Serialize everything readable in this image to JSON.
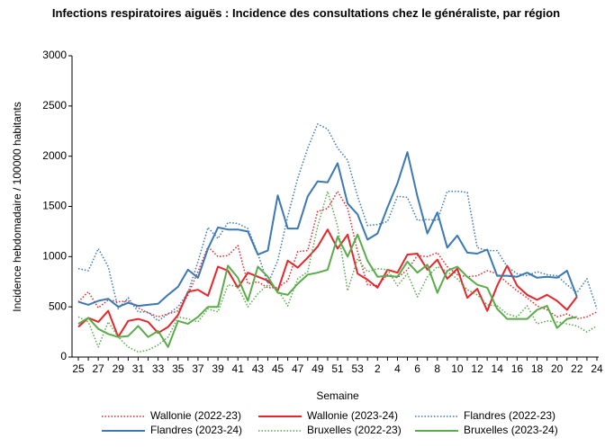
{
  "chart_data": {
    "type": "line",
    "title": "Infections respiratoires aiguës : Incidence des consultations chez le généraliste, par région",
    "x_label": "Semaine",
    "y_label": "Incidence hebdomadaire / 100000 habitants",
    "categories": [
      "25",
      null,
      "27",
      null,
      "29",
      null,
      "31",
      null,
      "33",
      null,
      "35",
      null,
      "37",
      null,
      "39",
      null,
      "41",
      null,
      "43",
      null,
      "45",
      null,
      "47",
      null,
      "49",
      null,
      "51",
      null,
      "53",
      null,
      "2",
      null,
      "4",
      null,
      "6",
      null,
      "8",
      null,
      "10",
      null,
      "12",
      null,
      "14",
      null,
      "16",
      null,
      "18",
      null,
      "20",
      null,
      "22",
      null,
      "24"
    ],
    "ylim": [
      0,
      3000
    ],
    "yticks": [
      0,
      500,
      1000,
      1500,
      2000,
      2500,
      3000
    ],
    "series": [
      {
        "name": "Wallonie (2022-23)",
        "color": "#e8262a",
        "style": "dotted",
        "values": [
          550,
          650,
          490,
          570,
          550,
          560,
          490,
          440,
          400,
          430,
          460,
          620,
          850,
          1100,
          1000,
          1010,
          1110,
          730,
          750,
          690,
          690,
          760,
          1050,
          1060,
          1450,
          1480,
          1650,
          1480,
          1050,
          720,
          710,
          820,
          790,
          870,
          1010,
          1000,
          1040,
          900,
          820,
          800,
          810,
          860,
          830,
          740,
          660,
          590,
          510,
          470,
          400,
          430,
          380,
          400,
          450
        ]
      },
      {
        "name": "Wallonie (2023-24)",
        "color": "#e8262a",
        "style": "solid",
        "values": [
          300,
          390,
          350,
          460,
          200,
          360,
          380,
          350,
          240,
          300,
          420,
          650,
          670,
          610,
          900,
          860,
          690,
          840,
          800,
          760,
          660,
          960,
          890,
          990,
          1100,
          1270,
          1080,
          1220,
          830,
          770,
          690,
          870,
          840,
          1020,
          1030,
          870,
          970,
          780,
          880,
          590,
          680,
          460,
          710,
          910,
          710,
          620,
          570,
          620,
          560,
          470,
          600,
          null,
          null
        ]
      },
      {
        "name": "Flandres (2022-23)",
        "color": "#3c78b4",
        "style": "dotted",
        "values": [
          880,
          860,
          1080,
          900,
          480,
          590,
          450,
          450,
          360,
          430,
          500,
          640,
          950,
          1290,
          1180,
          1340,
          1330,
          1280,
          1030,
          730,
          960,
          1400,
          1780,
          2080,
          2320,
          2270,
          2080,
          1960,
          1600,
          1310,
          1320,
          1350,
          1600,
          1590,
          1360,
          1370,
          1360,
          1650,
          1650,
          1640,
          1090,
          1060,
          1060,
          900,
          830,
          810,
          850,
          820,
          810,
          720,
          640,
          780,
          480
        ]
      },
      {
        "name": "Flandres (2023-24)",
        "color": "#3c78b4",
        "style": "solid",
        "values": [
          550,
          520,
          560,
          580,
          500,
          540,
          510,
          520,
          530,
          620,
          700,
          870,
          790,
          1080,
          1290,
          1270,
          1270,
          1250,
          1020,
          1060,
          1610,
          1280,
          1280,
          1600,
          1750,
          1740,
          1930,
          1530,
          1420,
          1170,
          1230,
          1490,
          1730,
          2040,
          1600,
          1230,
          1440,
          1090,
          1210,
          1040,
          1030,
          1070,
          810,
          810,
          800,
          840,
          790,
          800,
          790,
          860,
          600,
          null,
          null
        ]
      },
      {
        "name": "Bruxelles (2022-23)",
        "color": "#5aab4a",
        "style": "dotted",
        "values": [
          400,
          350,
          100,
          350,
          200,
          100,
          50,
          70,
          120,
          200,
          400,
          380,
          350,
          480,
          450,
          720,
          700,
          500,
          630,
          720,
          670,
          510,
          780,
          850,
          1300,
          1650,
          1300,
          660,
          980,
          850,
          880,
          870,
          710,
          830,
          600,
          800,
          900,
          850,
          780,
          670,
          620,
          520,
          510,
          430,
          400,
          510,
          330,
          360,
          350,
          330,
          310,
          250,
          310
        ]
      },
      {
        "name": "Bruxelles (2023-24)",
        "color": "#5aab4a",
        "style": "solid",
        "values": [
          330,
          390,
          280,
          230,
          200,
          210,
          310,
          200,
          260,
          100,
          360,
          330,
          400,
          500,
          500,
          910,
          790,
          560,
          900,
          800,
          640,
          620,
          730,
          820,
          840,
          870,
          1200,
          1000,
          1220,
          960,
          800,
          810,
          800,
          950,
          840,
          920,
          640,
          860,
          900,
          800,
          720,
          690,
          480,
          380,
          380,
          380,
          470,
          510,
          290,
          380,
          400,
          null,
          null
        ]
      }
    ]
  }
}
